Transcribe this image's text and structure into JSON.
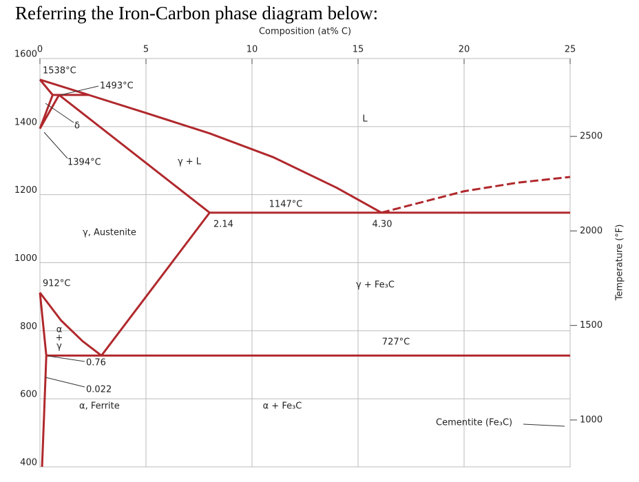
{
  "chart_data": {
    "type": "phase-diagram",
    "title": "Referring the Iron-Carbon phase diagram below:",
    "x_label": "Composition (at% C)",
    "y2_label": "Temperature (°F)",
    "xlim": [
      0,
      25
    ],
    "xticks": [
      0,
      5,
      10,
      15,
      20,
      25
    ],
    "ylim": [
      400,
      1600
    ],
    "yticks": [
      400,
      600,
      800,
      1000,
      1200,
      1400,
      1600
    ],
    "y2lim": [
      752,
      2912
    ],
    "y2ticks": [
      1000,
      1500,
      2000,
      2500
    ],
    "grid": true,
    "color": "#b0282c",
    "boundaries": [
      {
        "x": [
          0,
          0.6
        ],
        "y": [
          1538,
          1493
        ]
      },
      {
        "x": [
          0.6,
          0
        ],
        "y": [
          1493,
          1394
        ]
      },
      {
        "x": [
          0,
          0.9
        ],
        "y": [
          1394,
          1493
        ]
      },
      {
        "x": [
          0.6,
          2.3
        ],
        "y": [
          1493,
          1493
        ]
      },
      {
        "x": [
          0,
          2.3,
          5,
          8,
          11,
          14,
          16.1
        ],
        "y": [
          1538,
          1493,
          1440,
          1380,
          1310,
          1220,
          1147
        ]
      },
      {
        "x": [
          0.9,
          8.0
        ],
        "y": [
          1493,
          1147
        ]
      },
      {
        "x": [
          8.0,
          25
        ],
        "y": [
          1147,
          1147
        ]
      },
      {
        "x": [
          16.1,
          20,
          22.5,
          25
        ],
        "y": [
          1147,
          1210,
          1235,
          1252
        ],
        "dashed": true
      },
      {
        "x": [
          0,
          1,
          2,
          2.9
        ],
        "y": [
          912,
          830,
          770,
          727
        ]
      },
      {
        "x": [
          2.9,
          8.0
        ],
        "y": [
          727,
          1147
        ]
      },
      {
        "x": [
          0.3,
          25
        ],
        "y": [
          727,
          727
        ]
      },
      {
        "x": [
          0,
          0.3
        ],
        "y": [
          912,
          727
        ]
      },
      {
        "x": [
          0.3,
          0.2,
          0.1
        ],
        "y": [
          727,
          560,
          400
        ]
      }
    ],
    "annotations": [
      "1538°C",
      "1493°C",
      "δ",
      "1394°C",
      "γ + L",
      "L",
      "1147°C",
      "2.14",
      "4.30",
      "γ, Austenite",
      "912°C",
      "α",
      "+",
      "γ",
      "γ + Fe₃C",
      "727°C",
      "0.76",
      "0.022",
      "α, Ferrite",
      "α + Fe₃C",
      "Cementite (Fe₃C)"
    ]
  }
}
